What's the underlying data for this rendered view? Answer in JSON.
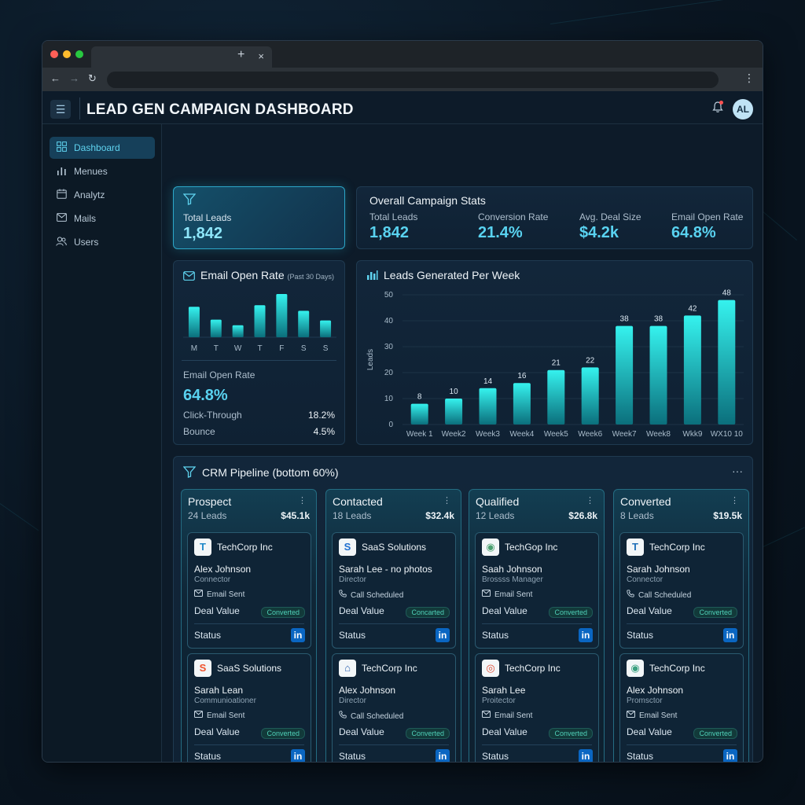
{
  "app": {
    "title": "LEAD GEN CAMPAIGN DASHBOARD",
    "avatar_initials": "AL"
  },
  "browser": {
    "tab_close": "×",
    "new_tab": "+",
    "back": "←",
    "forward": "→",
    "reload": "↻",
    "menu": "⋮"
  },
  "sidebar": {
    "items": [
      {
        "label": "Dashboard",
        "icon": "grid-icon",
        "active": true
      },
      {
        "label": "Menues",
        "icon": "bar-chart-icon",
        "active": false
      },
      {
        "label": "Analytz",
        "icon": "calendar-icon",
        "active": false
      },
      {
        "label": "Mails",
        "icon": "mail-icon",
        "active": false
      },
      {
        "label": "Users",
        "icon": "users-icon",
        "active": false
      }
    ]
  },
  "total_leads_card": {
    "label": "Total Leads",
    "value": "1,842"
  },
  "overall_stats": {
    "title": "Overall Campaign Stats",
    "items": [
      {
        "label": "Total Leads",
        "value": "1,842"
      },
      {
        "label": "Conversion Rate",
        "value": "21.4%"
      },
      {
        "label": "Avg. Deal Size",
        "value": "$4.2k"
      },
      {
        "label": "Email Open Rate",
        "value": "64.8%"
      }
    ]
  },
  "email_open_rate": {
    "title": "Email Open Rate",
    "subtitle": "(Past 30 Days)",
    "metric_label": "Email Open Rate",
    "metric_value": "64.8%",
    "rows": [
      {
        "label": "Click-Through",
        "value": "18.2%"
      },
      {
        "label": "Bounce",
        "value": "4.5%"
      }
    ]
  },
  "chart_data": [
    {
      "type": "bar",
      "title": "Email Open Rate",
      "categories": [
        "M",
        "T",
        "W",
        "T",
        "F",
        "S",
        "S"
      ],
      "values": [
        38,
        22,
        15,
        40,
        54,
        33,
        21
      ]
    },
    {
      "type": "bar",
      "title": "Leads Generated Per Week",
      "categories": [
        "Week 1",
        "Week2",
        "Week3",
        "Week4",
        "Week5",
        "Week6",
        "Week7",
        "Week8",
        "Wkk9",
        "WX10 10"
      ],
      "values": [
        8,
        10,
        14,
        16,
        21,
        22,
        38,
        38,
        42,
        48
      ],
      "ylabel": "Leads",
      "ylim": [
        0,
        50
      ],
      "yticks": [
        0,
        10,
        20,
        30,
        40,
        50
      ],
      "grid": true
    }
  ],
  "crm": {
    "title": "CRM Pipeline (bottom 60%)",
    "more": "···",
    "column_more": "⋮",
    "chevron": "⌄",
    "columns": [
      {
        "name": "Prospect",
        "count": "24 Leads",
        "value": "$45.1k",
        "cards": [
          {
            "company": "TechCorp Inc",
            "logo_text": "T",
            "logo_color": "#1e88c8",
            "person": "Alex Johnson",
            "role": "Connector",
            "activity_icon": "mail-icon",
            "activity": "Email Sent",
            "deal_label": "Deal Value",
            "badge": "Converted",
            "status_label": "Status",
            "social": "in"
          },
          {
            "company": "SaaS Solutions",
            "logo_text": "S",
            "logo_color": "#f0522c",
            "person": "Sarah Lean",
            "role": "Communioationer",
            "activity_icon": "mail-icon",
            "activity": "Email Sent",
            "deal_label": "Deal Value",
            "badge": "Converted",
            "status_label": "Status",
            "social": "in"
          }
        ]
      },
      {
        "name": "Contacted",
        "count": "18 Leads",
        "value": "$32.4k",
        "cards": [
          {
            "company": "SaaS Solutions",
            "logo_text": "S",
            "logo_color": "#1e6fd0",
            "person": "Sarah Lee - no photos",
            "role": "Director",
            "activity_icon": "phone-icon",
            "activity": "Call Scheduled",
            "deal_label": "Deal Value",
            "badge": "Concarted",
            "status_label": "Status",
            "social": "in"
          },
          {
            "company": "TechCorp Inc",
            "logo_text": "⌂",
            "logo_color": "#2a5fb0",
            "person": "Alex Johnson",
            "role": "Director",
            "activity_icon": "phone-icon",
            "activity": "Call Scheduled",
            "deal_label": "Deal Value",
            "badge": "Converted",
            "status_label": "Status",
            "social": "in"
          }
        ]
      },
      {
        "name": "Qualified",
        "count": "12 Leads",
        "value": "$26.8k",
        "cards": [
          {
            "company": "TechGop Inc",
            "logo_text": "◉",
            "logo_color": "#4aa070",
            "person": "Saah Johnson",
            "role": "Brossss Manager",
            "activity_icon": "mail-icon",
            "activity": "Email Sent",
            "deal_label": "Deal Value",
            "badge": "Converted",
            "status_label": "Status",
            "social": "in"
          },
          {
            "company": "TechCorp Inc",
            "logo_text": "◎",
            "logo_color": "#e0503a",
            "person": "Sarah Lee",
            "role": "Proitector",
            "activity_icon": "mail-icon",
            "activity": "Email Sent",
            "deal_label": "Deal Value",
            "badge": "Converted",
            "status_label": "Status",
            "social": "in"
          }
        ]
      },
      {
        "name": "Converted",
        "count": "8 Leads",
        "value": "$19.5k",
        "cards": [
          {
            "company": "TechCorp Inc",
            "logo_text": "T",
            "logo_color": "#1e6fb8",
            "person": "Sarah Johnson",
            "role": "Connector",
            "activity_icon": "phone-icon",
            "activity": "Call Scheduled",
            "deal_label": "Deal Value",
            "badge": "Converted",
            "status_label": "Status",
            "social": "in"
          },
          {
            "company": "TechCorp Inc",
            "logo_text": "◉",
            "logo_color": "#3aa080",
            "person": "Alex Johnson",
            "role": "Promsctor",
            "activity_icon": "mail-icon",
            "activity": "Email Sent",
            "deal_label": "Deal Value",
            "badge": "Converted",
            "status_label": "Status",
            "social": "in"
          }
        ]
      }
    ]
  },
  "colors": {
    "accent": "#2ee6e6",
    "accent_dark": "#0d7f86",
    "background": "#0a1622",
    "linkedin": "#0a66c2"
  }
}
